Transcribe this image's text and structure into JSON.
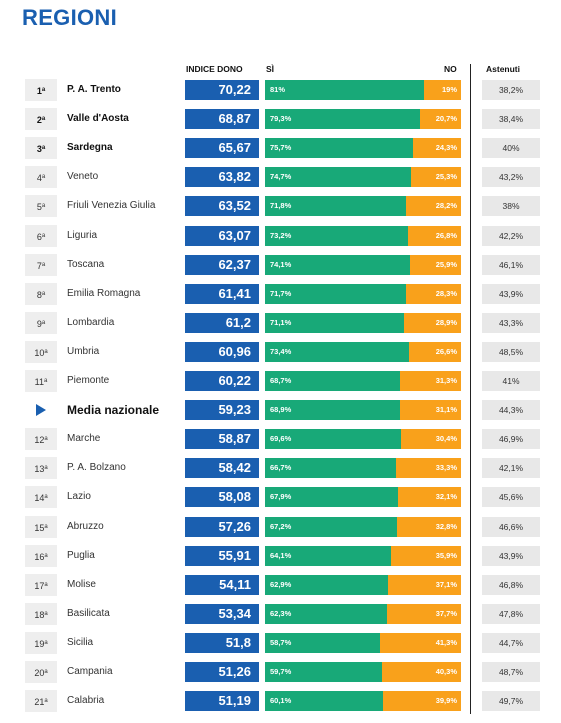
{
  "title": "REGIONI",
  "chart_data": {
    "type": "table",
    "columns": {
      "indice": "INDICE DONO",
      "si": "SÌ",
      "no": "NO",
      "astenuti": "Astenuti"
    },
    "colors": {
      "title": "#1a5fb0",
      "indice_bg": "#1a5fb0",
      "si": "#18a978",
      "no": "#f9a11b",
      "rank_bg": "#eeeeee",
      "astenuti_bg": "#e8e8e8"
    },
    "rows": [
      {
        "rank": "1",
        "ord": "a",
        "name": "P. A. Trento",
        "bold": true,
        "indice": "70,22",
        "si": "81%",
        "no": "19%",
        "si_value": 81,
        "astenuti": "38,2%"
      },
      {
        "rank": "2",
        "ord": "a",
        "name": "Valle d'Aosta",
        "bold": true,
        "indice": "68,87",
        "si": "79,3%",
        "no": "20,7%",
        "si_value": 79.3,
        "astenuti": "38,4%"
      },
      {
        "rank": "3",
        "ord": "a",
        "name": "Sardegna",
        "bold": true,
        "indice": "65,67",
        "si": "75,7%",
        "no": "24,3%",
        "si_value": 75.7,
        "astenuti": "40%"
      },
      {
        "rank": "4",
        "ord": "a",
        "name": "Veneto",
        "bold": false,
        "indice": "63,82",
        "si": "74,7%",
        "no": "25,3%",
        "si_value": 74.7,
        "astenuti": "43,2%"
      },
      {
        "rank": "5",
        "ord": "a",
        "name": "Friuli Venezia Giulia",
        "bold": false,
        "indice": "63,52",
        "si": "71,8%",
        "no": "28,2%",
        "si_value": 71.8,
        "astenuti": "38%"
      },
      {
        "rank": "6",
        "ord": "a",
        "name": "Liguria",
        "bold": false,
        "indice": "63,07",
        "si": "73,2%",
        "no": "26,8%",
        "si_value": 73.2,
        "astenuti": "42,2%"
      },
      {
        "rank": "7",
        "ord": "a",
        "name": "Toscana",
        "bold": false,
        "indice": "62,37",
        "si": "74,1%",
        "no": "25,9%",
        "si_value": 74.1,
        "astenuti": "46,1%"
      },
      {
        "rank": "8",
        "ord": "a",
        "name": "Emilia Romagna",
        "bold": false,
        "indice": "61,41",
        "si": "71,7%",
        "no": "28,3%",
        "si_value": 71.7,
        "astenuti": "43,9%"
      },
      {
        "rank": "9",
        "ord": "a",
        "name": "Lombardia",
        "bold": false,
        "indice": "61,2",
        "si": "71,1%",
        "no": "28,9%",
        "si_value": 71.1,
        "astenuti": "43,3%"
      },
      {
        "rank": "10",
        "ord": "a",
        "name": "Umbria",
        "bold": false,
        "indice": "60,96",
        "si": "73,4%",
        "no": "26,6%",
        "si_value": 73.4,
        "astenuti": "48,5%"
      },
      {
        "rank": "11",
        "ord": "a",
        "name": "Piemonte",
        "bold": false,
        "indice": "60,22",
        "si": "68,7%",
        "no": "31,3%",
        "si_value": 68.7,
        "astenuti": "41%"
      },
      {
        "rank": "",
        "ord": "",
        "name": "Media nazionale",
        "media": true,
        "indice": "59,23",
        "si": "68,9%",
        "no": "31,1%",
        "si_value": 68.9,
        "astenuti": "44,3%"
      },
      {
        "rank": "12",
        "ord": "a",
        "name": "Marche",
        "bold": false,
        "indice": "58,87",
        "si": "69,6%",
        "no": "30,4%",
        "si_value": 69.6,
        "astenuti": "46,9%"
      },
      {
        "rank": "13",
        "ord": "a",
        "name": "P. A. Bolzano",
        "bold": false,
        "indice": "58,42",
        "si": "66,7%",
        "no": "33,3%",
        "si_value": 66.7,
        "astenuti": "42,1%"
      },
      {
        "rank": "14",
        "ord": "a",
        "name": "Lazio",
        "bold": false,
        "indice": "58,08",
        "si": "67,9%",
        "no": "32,1%",
        "si_value": 67.9,
        "astenuti": "45,6%"
      },
      {
        "rank": "15",
        "ord": "a",
        "name": "Abruzzo",
        "bold": false,
        "indice": "57,26",
        "si": "67,2%",
        "no": "32,8%",
        "si_value": 67.2,
        "astenuti": "46,6%"
      },
      {
        "rank": "16",
        "ord": "a",
        "name": "Puglia",
        "bold": false,
        "indice": "55,91",
        "si": "64,1%",
        "no": "35,9%",
        "si_value": 64.1,
        "astenuti": "43,9%"
      },
      {
        "rank": "17",
        "ord": "a",
        "name": "Molise",
        "bold": false,
        "indice": "54,11",
        "si": "62,9%",
        "no": "37,1%",
        "si_value": 62.9,
        "astenuti": "46,8%"
      },
      {
        "rank": "18",
        "ord": "a",
        "name": "Basilicata",
        "bold": false,
        "indice": "53,34",
        "si": "62,3%",
        "no": "37,7%",
        "si_value": 62.3,
        "astenuti": "47,8%"
      },
      {
        "rank": "19",
        "ord": "a",
        "name": "Sicilia",
        "bold": false,
        "indice": "51,8",
        "si": "58,7%",
        "no": "41,3%",
        "si_value": 58.7,
        "astenuti": "44,7%"
      },
      {
        "rank": "20",
        "ord": "a",
        "name": "Campania",
        "bold": false,
        "indice": "51,26",
        "si": "59,7%",
        "no": "40,3%",
        "si_value": 59.7,
        "astenuti": "48,7%"
      },
      {
        "rank": "21",
        "ord": "a",
        "name": "Calabria",
        "bold": false,
        "indice": "51,19",
        "si": "60,1%",
        "no": "39,9%",
        "si_value": 60.1,
        "astenuti": "49,7%"
      }
    ]
  }
}
